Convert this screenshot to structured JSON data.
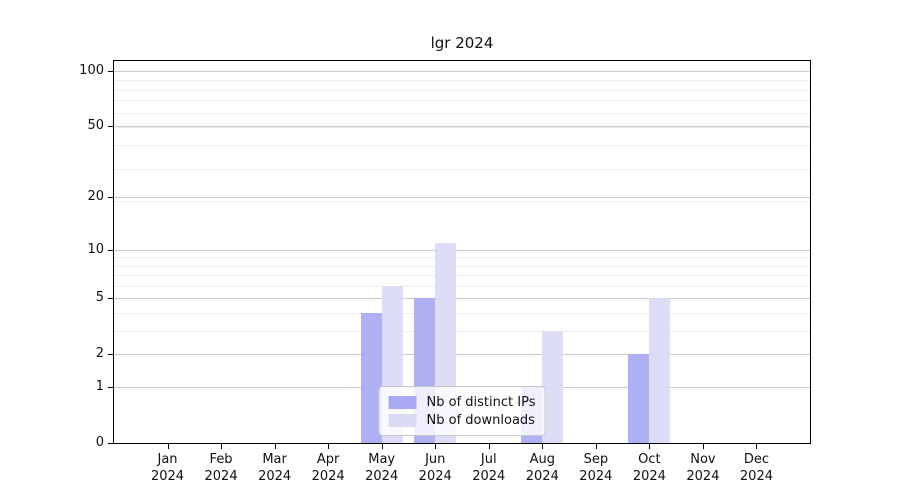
{
  "chart_data": {
    "type": "bar",
    "title": "lgr 2024",
    "categories": [
      "Jan",
      "Feb",
      "Mar",
      "Apr",
      "May",
      "Jun",
      "Jul",
      "Aug",
      "Sep",
      "Oct",
      "Nov",
      "Dec"
    ],
    "year_label": "2024",
    "series": [
      {
        "name": "Nb of distinct IPs",
        "color": "#a9a9f3",
        "values": [
          0,
          0,
          0,
          0,
          4,
          5,
          0,
          1,
          0,
          2,
          0,
          0
        ]
      },
      {
        "name": "Nb of downloads",
        "color": "#dadaf6",
        "values": [
          0,
          0,
          0,
          0,
          6,
          11,
          0,
          3,
          0,
          5,
          0,
          0
        ]
      }
    ],
    "y_scale": "log(value+1)",
    "y_major_ticks": [
      0,
      1,
      2,
      5,
      10,
      20,
      50,
      100
    ],
    "y_minor_ticks": [
      3,
      4,
      6,
      7,
      8,
      9,
      19,
      29,
      39,
      49,
      59,
      69,
      79,
      89
    ],
    "y_top_value": 113,
    "grid": true,
    "legend_position": "lower center",
    "colors": {
      "grid_major": "#cccccc",
      "grid_minor": "#ececec",
      "spine": "#000000",
      "text": "#111111"
    }
  }
}
